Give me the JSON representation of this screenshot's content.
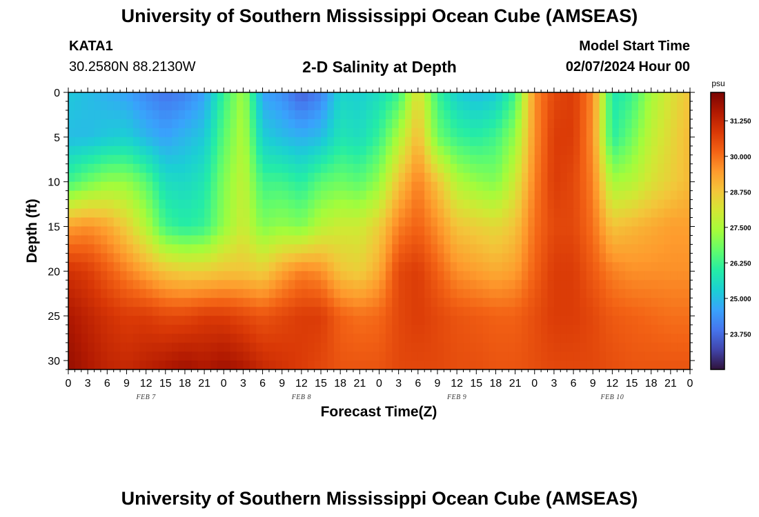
{
  "header": {
    "title": "University of Southern Mississippi Ocean Cube (AMSEAS)",
    "station": "KATA1",
    "coordinates": "30.2580N  88.2130W",
    "plot_title": "2-D Salinity at Depth",
    "model_start_label": "Model Start Time",
    "model_start_value": "02/07/2024 Hour 00"
  },
  "footer": {
    "title": "University of Southern Mississippi Ocean Cube (AMSEAS)"
  },
  "chart_data": {
    "type": "heatmap",
    "title": "2-D Salinity at Depth",
    "xlabel": "Forecast Time(Z)",
    "ylabel": "Depth (ft)",
    "x_range_hours": [
      0,
      96
    ],
    "x_tick_step_hours": 3,
    "x_tick_labels": [
      "0",
      "3",
      "6",
      "9",
      "12",
      "15",
      "18",
      "21",
      "0",
      "3",
      "6",
      "9",
      "12",
      "15",
      "18",
      "21",
      "0",
      "3",
      "6",
      "9",
      "12",
      "15",
      "18",
      "21",
      "0",
      "3",
      "6",
      "9",
      "12",
      "15",
      "18",
      "21",
      "0"
    ],
    "day_labels": [
      {
        "label": "FEB 7",
        "hour": 12
      },
      {
        "label": "FEB 8",
        "hour": 36
      },
      {
        "label": "FEB 9",
        "hour": 60
      },
      {
        "label": "FEB 10",
        "hour": 84
      }
    ],
    "ylim": [
      0,
      31
    ],
    "y_ticks": [
      0,
      5,
      10,
      15,
      20,
      25,
      30
    ],
    "y_inverted": true,
    "colorbar": {
      "unit": "psu",
      "range": [
        22.5,
        32.25
      ],
      "ticks": [
        31.25,
        30.0,
        28.75,
        27.5,
        26.25,
        25.0,
        23.75
      ],
      "tick_labels": [
        "31.250",
        "30.000",
        "28.750",
        "27.500",
        "26.250",
        "25.000",
        "23.750"
      ],
      "colors": [
        "#30123b",
        "#4145ab",
        "#4675ed",
        "#39a2fc",
        "#1bcfd4",
        "#24eca6",
        "#61fc6c",
        "#a4fc3b",
        "#d1e834",
        "#f3c63a",
        "#fe9b2d",
        "#f36315",
        "#d93806",
        "#b11901",
        "#7a0402"
      ]
    },
    "depths_ft": [
      0,
      5,
      10,
      15,
      20,
      25,
      31
    ],
    "times_hours": [
      0,
      3,
      6,
      9,
      12,
      15,
      18,
      21,
      24,
      27,
      30,
      33,
      36,
      39,
      42,
      45,
      48,
      51,
      54,
      57,
      60,
      63,
      66,
      69,
      72,
      75,
      78,
      81,
      84,
      87,
      90,
      93,
      96
    ],
    "salinity_psu": [
      [
        25.2,
        25.0,
        24.8,
        24.6,
        24.2,
        23.9,
        24.1,
        24.6,
        26.2,
        27.4,
        24.6,
        24.3,
        23.6,
        24.1,
        25.4,
        25.3,
        25.6,
        26.2,
        28.3,
        26.2,
        25.3,
        25.0,
        25.2,
        26.3,
        29.6,
        30.6,
        30.8,
        29.7,
        25.8,
        26.2,
        27.4,
        28.2,
        28.8
      ],
      [
        25.0,
        25.0,
        25.2,
        25.3,
        24.9,
        24.6,
        24.9,
        25.2,
        26.6,
        27.6,
        25.3,
        25.0,
        24.8,
        25.0,
        25.8,
        25.6,
        26.2,
        27.5,
        29.0,
        26.8,
        26.2,
        26.0,
        26.3,
        27.2,
        29.6,
        30.8,
        30.8,
        29.6,
        26.0,
        26.8,
        27.8,
        28.4,
        29.0
      ],
      [
        26.3,
        26.8,
        27.2,
        27.2,
        26.6,
        25.6,
        25.5,
        25.8,
        27.0,
        27.8,
        26.3,
        26.3,
        26.0,
        26.6,
        26.8,
        26.6,
        27.2,
        28.8,
        29.8,
        28.8,
        27.6,
        27.2,
        27.0,
        28.0,
        29.8,
        30.8,
        30.6,
        29.8,
        27.4,
        27.6,
        28.2,
        28.6,
        29.0
      ],
      [
        29.4,
        29.6,
        29.3,
        28.6,
        27.6,
        26.3,
        26.0,
        26.2,
        27.2,
        28.0,
        27.0,
        27.2,
        27.0,
        27.7,
        28.0,
        28.0,
        28.6,
        29.8,
        30.2,
        29.6,
        28.8,
        28.6,
        28.4,
        28.8,
        30.0,
        30.6,
        30.6,
        30.0,
        28.8,
        29.0,
        29.2,
        29.4,
        29.4
      ],
      [
        31.0,
        30.8,
        30.3,
        29.8,
        29.3,
        28.8,
        28.6,
        28.6,
        28.8,
        28.8,
        28.6,
        29.3,
        29.8,
        29.6,
        28.8,
        28.6,
        29.2,
        30.6,
        30.8,
        30.2,
        29.6,
        29.4,
        29.2,
        29.4,
        30.2,
        30.8,
        30.8,
        30.3,
        29.8,
        29.6,
        29.6,
        29.6,
        29.6
      ],
      [
        31.6,
        31.3,
        31.0,
        30.8,
        30.8,
        30.6,
        30.6,
        30.8,
        30.8,
        30.6,
        30.4,
        30.6,
        30.8,
        30.8,
        30.2,
        30.0,
        30.1,
        30.6,
        30.8,
        30.6,
        30.4,
        30.3,
        30.2,
        30.2,
        30.5,
        30.8,
        30.8,
        30.6,
        30.3,
        30.2,
        30.1,
        30.0,
        30.0
      ],
      [
        31.9,
        31.6,
        31.3,
        31.2,
        31.4,
        31.6,
        31.8,
        31.6,
        31.8,
        31.6,
        31.2,
        31.0,
        30.8,
        30.6,
        30.4,
        30.4,
        30.4,
        30.6,
        30.6,
        30.6,
        30.5,
        30.5,
        30.4,
        30.4,
        30.5,
        30.6,
        30.6,
        30.6,
        30.5,
        30.4,
        30.4,
        30.4,
        30.4
      ]
    ]
  }
}
